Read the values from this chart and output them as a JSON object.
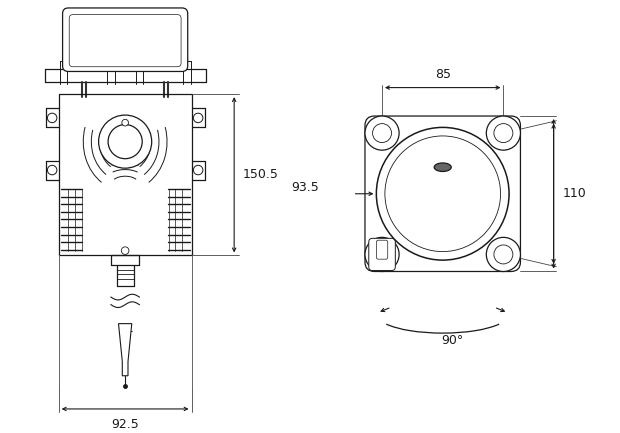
{
  "bg_color": "#ffffff",
  "line_color": "#1a1a1a",
  "fig_width": 6.2,
  "fig_height": 4.33,
  "dpi": 100,
  "left_view": {
    "dim_150_5": "150.5",
    "dim_92_5": "92.5"
  },
  "right_view": {
    "dim_85": "85",
    "dim_93_5": "93.5",
    "dim_110": "110",
    "dim_90": "90°"
  }
}
